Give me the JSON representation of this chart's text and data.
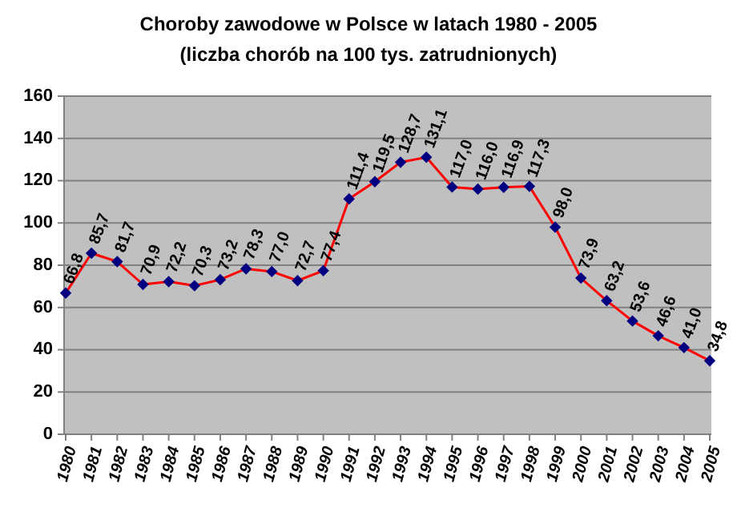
{
  "chart_data": {
    "type": "line",
    "title": "Choroby zawodowe w Polsce w latach 1980 - 2005",
    "subtitle": "(liczba chorób na 100 tys. zatrudnionych)",
    "categories": [
      "1980",
      "1981",
      "1982",
      "1983",
      "1984",
      "1985",
      "1986",
      "1987",
      "1988",
      "1989",
      "1990",
      "1991",
      "1992",
      "1993",
      "1994",
      "1995",
      "1996",
      "1997",
      "1998",
      "1999",
      "2000",
      "2001",
      "2002",
      "2003",
      "2004",
      "2005"
    ],
    "series": [
      {
        "color": "#ff0000",
        "values": [
          66.8,
          85.7,
          81.7,
          70.9,
          72.2,
          70.3,
          73.2,
          78.3,
          77.0,
          72.7,
          77.4,
          111.4,
          119.5,
          128.7,
          131.1,
          117.0,
          116.0,
          116.9,
          117.3,
          98.0,
          73.9,
          63.2,
          53.6,
          46.6,
          41.0,
          34.8
        ],
        "value_labels": [
          "66,8",
          "85,7",
          "81,7",
          "70,9",
          "72,2",
          "70,3",
          "73,2",
          "78,3",
          "77,0",
          "72,7",
          "77,4",
          "111,4",
          "119,5",
          "128,7",
          "131,1",
          "117,0",
          "116,0",
          "116,9",
          "117,3",
          "98,0",
          "73,9",
          "63,2",
          "53,6",
          "46,6",
          "41,0",
          "34,8"
        ]
      }
    ],
    "marker": "diamond",
    "ylim": [
      0,
      160
    ],
    "yticks": [
      0,
      20,
      40,
      60,
      80,
      100,
      120,
      140,
      160
    ],
    "grid": "y"
  }
}
